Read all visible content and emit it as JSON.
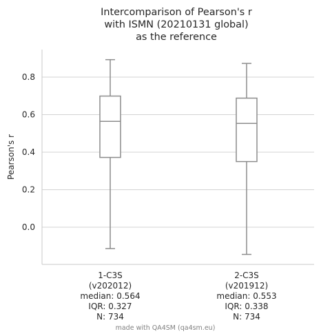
{
  "chart_data": {
    "type": "box",
    "title_lines": [
      "Intercomparison of Pearson's r",
      "with ISMN (20210131 global)",
      "as the reference"
    ],
    "xlabel": "",
    "ylabel": "Pearson's r",
    "ylim": [
      -0.2,
      0.95
    ],
    "yticks": [
      "0.0",
      "0.2",
      "0.4",
      "0.6",
      "0.8"
    ],
    "ytick_values": [
      0.0,
      0.2,
      0.4,
      0.6,
      0.8
    ],
    "grid": "horizontal",
    "colors": {
      "box_stroke": "#8c8c8c",
      "grid": "#d3d3d3",
      "axis": "#c8c8c8"
    },
    "boxes": [
      {
        "label_lines": [
          "1-C3S",
          "(v202012)",
          "median: 0.564",
          "IQR: 0.327",
          "N: 734"
        ],
        "whisker_low": -0.114,
        "q1": 0.372,
        "median": 0.564,
        "q3": 0.699,
        "whisker_high": 0.893
      },
      {
        "label_lines": [
          "2-C3S",
          "(v201912)",
          "median: 0.553",
          "IQR: 0.338",
          "N: 734"
        ],
        "whisker_low": -0.145,
        "q1": 0.35,
        "median": 0.553,
        "q3": 0.688,
        "whisker_high": 0.873
      }
    ]
  },
  "watermark": "made with QA4SM (qa4sm.eu)"
}
